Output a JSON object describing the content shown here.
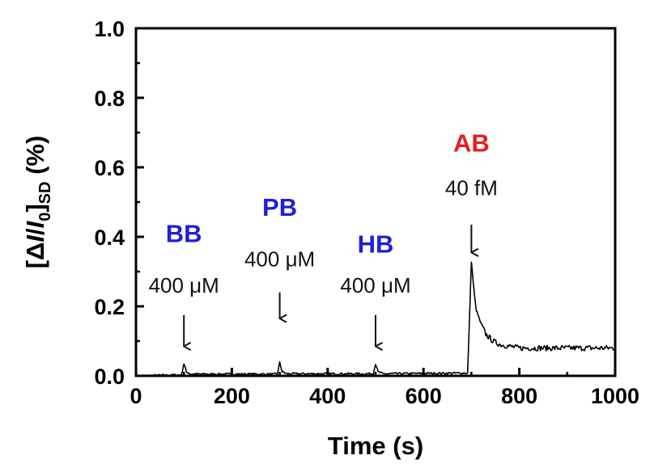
{
  "chart_data": {
    "type": "line",
    "xlabel": "Time (s)",
    "ylabel_parts": {
      "open": "[Δ",
      "I": "I",
      "slash": "/",
      "I0": "I",
      "zero": "0",
      "close": "]",
      "sub": "SD",
      "unit": " (%)"
    },
    "xlim": [
      0,
      1000
    ],
    "ylim": [
      0,
      1.0
    ],
    "x_ticks": [
      "0",
      "200",
      "400",
      "600",
      "800",
      "1000"
    ],
    "y_ticks": [
      "0.0",
      "0.2",
      "0.4",
      "0.6",
      "0.8",
      "1.0"
    ],
    "grid": false,
    "colors": {
      "line": "#000000",
      "blue": "#1f1fdc",
      "red": "#e81c1c"
    },
    "series": [
      {
        "values": [
          [
            0,
            0.0
          ],
          [
            95,
            0.003
          ],
          [
            100,
            0.035
          ],
          [
            105,
            0.012
          ],
          [
            115,
            0.005
          ],
          [
            295,
            0.005
          ],
          [
            300,
            0.038
          ],
          [
            305,
            0.012
          ],
          [
            315,
            0.006
          ],
          [
            495,
            0.006
          ],
          [
            500,
            0.035
          ],
          [
            505,
            0.012
          ],
          [
            515,
            0.006
          ],
          [
            692,
            0.008
          ],
          [
            695,
            0.12
          ],
          [
            700,
            0.33
          ],
          [
            705,
            0.25
          ],
          [
            710,
            0.19
          ],
          [
            720,
            0.15
          ],
          [
            730,
            0.12
          ],
          [
            745,
            0.1
          ],
          [
            760,
            0.09
          ],
          [
            800,
            0.08
          ],
          [
            900,
            0.08
          ],
          [
            1000,
            0.08
          ]
        ]
      }
    ],
    "annotations": [
      {
        "name": "BB",
        "conc": "400 μM",
        "x": 100,
        "color": "blue",
        "arrow_from": 0.175,
        "arrow_to": 0.085,
        "conc_y": 0.24,
        "name_y": 0.385
      },
      {
        "name": "PB",
        "conc": "400 μM",
        "x": 300,
        "color": "blue",
        "arrow_from": 0.24,
        "arrow_to": 0.165,
        "conc_y": 0.315,
        "name_y": 0.46
      },
      {
        "name": "HB",
        "conc": "400 μM",
        "x": 500,
        "color": "blue",
        "arrow_from": 0.175,
        "arrow_to": 0.085,
        "conc_y": 0.24,
        "name_y": 0.355
      },
      {
        "name": "AB",
        "conc": "40 fM",
        "x": 700,
        "color": "red",
        "arrow_from": 0.435,
        "arrow_to": 0.355,
        "conc_y": 0.52,
        "name_y": 0.645
      }
    ]
  }
}
